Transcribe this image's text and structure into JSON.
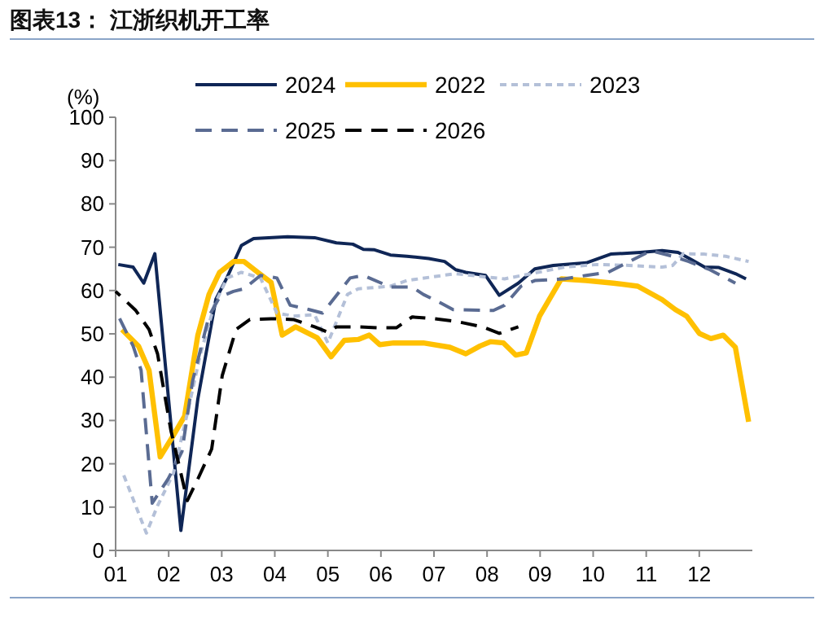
{
  "chart_data": {
    "type": "line",
    "title": "图表13：  江浙织机开工率",
    "ylabel": "(%)",
    "xlim": [
      1,
      13
    ],
    "ylim": [
      0,
      100
    ],
    "xticks": [
      {
        "value": 1,
        "label": "01"
      },
      {
        "value": 2,
        "label": "02"
      },
      {
        "value": 3,
        "label": "03"
      },
      {
        "value": 4,
        "label": "04"
      },
      {
        "value": 5,
        "label": "05"
      },
      {
        "value": 6,
        "label": "06"
      },
      {
        "value": 7,
        "label": "07"
      },
      {
        "value": 8,
        "label": "08"
      },
      {
        "value": 9,
        "label": "09"
      },
      {
        "value": 10,
        "label": "10"
      },
      {
        "value": 11,
        "label": "11"
      },
      {
        "value": 12,
        "label": "12"
      }
    ],
    "yticks": [
      0,
      10,
      20,
      30,
      40,
      50,
      60,
      70,
      80,
      90,
      100
    ],
    "grid": false,
    "legend": "top",
    "marker": "none",
    "series": [
      {
        "name": "2024",
        "color": "#0f2656",
        "line_style": "solid",
        "x": [
          1.05,
          1.33,
          1.53,
          1.74,
          2.23,
          2.55,
          2.89,
          3.1,
          3.37,
          3.6,
          4.24,
          4.75,
          5.16,
          5.47,
          5.67,
          5.88,
          6.18,
          6.49,
          6.9,
          7.2,
          7.41,
          7.6,
          7.97,
          8.23,
          8.59,
          8.9,
          9.25,
          9.87,
          10.33,
          10.89,
          11.3,
          11.6,
          11.8,
          12.1,
          12.37,
          12.68,
          12.88
        ],
        "values": [
          66,
          65.4,
          61.7,
          68.5,
          4.6,
          35,
          58,
          63,
          70.4,
          72,
          72.4,
          72.2,
          71,
          70.7,
          69.5,
          69.4,
          68.2,
          67.9,
          67.4,
          66.7,
          64.8,
          64.2,
          63.5,
          58.9,
          61.7,
          65,
          65.8,
          66.4,
          68.4,
          68.8,
          69.2,
          68.8,
          67.5,
          65.4,
          65.3,
          63.9,
          62.7
        ]
      },
      {
        "name": "2022",
        "color": "#ffc000",
        "line_style": "solid",
        "x": [
          1.12,
          1.43,
          1.63,
          1.84,
          2.09,
          2.3,
          2.55,
          2.76,
          2.96,
          3.22,
          3.42,
          3.68,
          3.93,
          4.14,
          4.39,
          4.8,
          5.06,
          5.31,
          5.57,
          5.78,
          5.98,
          6.24,
          6.8,
          7.3,
          7.6,
          7.87,
          8.07,
          8.31,
          8.54,
          8.74,
          8.99,
          9.4,
          9.87,
          10.38,
          10.84,
          11.3,
          11.55,
          11.76,
          12.0,
          12.22,
          12.45,
          12.68,
          12.93
        ],
        "values": [
          51,
          47.2,
          41.6,
          21.6,
          26.6,
          31,
          49.7,
          59.1,
          64.2,
          66.7,
          66.7,
          64.2,
          61.9,
          49.7,
          51.6,
          49.1,
          44.7,
          48.5,
          48.7,
          49.7,
          47.5,
          47.9,
          47.9,
          46.9,
          45.4,
          47.2,
          48.2,
          47.9,
          45.1,
          45.6,
          54.1,
          62.7,
          62.3,
          61.7,
          61,
          57.9,
          55.6,
          54.1,
          50.1,
          48.9,
          49.7,
          46.9,
          29.7
        ]
      },
      {
        "name": "2023",
        "color": "#b4c0d8",
        "line_style": "dotted",
        "x": [
          1.12,
          1.58,
          1.79,
          2.09,
          2.35,
          2.6,
          2.86,
          3.1,
          3.37,
          3.73,
          4.04,
          4.35,
          4.75,
          5.0,
          5.37,
          5.57,
          6.18,
          6.49,
          7.0,
          7.41,
          7.92,
          8.33,
          8.84,
          9.46,
          10.07,
          10.68,
          11.3,
          11.5,
          11.7,
          12.1,
          12.5,
          12.93
        ],
        "values": [
          18.4,
          4,
          10.3,
          17.8,
          31.6,
          45.4,
          56.6,
          62.9,
          64.2,
          62.9,
          54.8,
          54.1,
          54.4,
          47.9,
          59.1,
          60.4,
          61,
          62.3,
          63.2,
          63.9,
          63.2,
          62.7,
          63.9,
          65.4,
          66,
          65.8,
          65.4,
          65.8,
          68.5,
          68.4,
          67.9,
          66.7
        ]
      },
      {
        "name": "2025",
        "color": "#5a6b92",
        "line_style": "dashed",
        "x": [
          1,
          1.33,
          1.48,
          1.69,
          1.99,
          2.25,
          2.45,
          2.76,
          2.96,
          3.22,
          3.42,
          3.73,
          4.04,
          4.29,
          4.65,
          4.9,
          5.1,
          5.42,
          5.67,
          6.18,
          6.59,
          6.8,
          7.1,
          7.36,
          8.12,
          8.33,
          8.64,
          8.9,
          9.46,
          9.87,
          10.28,
          10.68,
          11.09,
          11.5,
          11.8,
          12.2,
          12.68
        ],
        "values": [
          55.4,
          47.2,
          41.6,
          10.9,
          16.5,
          22.8,
          39.1,
          54.1,
          58.5,
          59.8,
          60.4,
          63.5,
          62.9,
          56.6,
          55.6,
          54.8,
          57.9,
          62.9,
          63.5,
          60.8,
          60.8,
          59.1,
          57.3,
          55.6,
          55.4,
          56.6,
          61,
          62.3,
          62.7,
          63.5,
          64.2,
          66.7,
          69.2,
          67.9,
          66.7,
          64.8,
          61.7
        ]
      },
      {
        "name": "2026",
        "color": "#000000",
        "line_style": "dashed",
        "x": [
          1,
          1.38,
          1.63,
          1.79,
          2.04,
          2.35,
          2.55,
          2.81,
          3.01,
          3.27,
          3.53,
          3.93,
          4.35,
          4.75,
          5.0,
          5.16,
          5.57,
          5.98,
          6.29,
          6.59,
          7.0,
          7.41,
          7.92,
          8.23,
          8.59
        ],
        "values": [
          59.8,
          55.4,
          51,
          45.4,
          27.8,
          11.5,
          16.5,
          23.4,
          40.4,
          51,
          53.3,
          53.5,
          53.3,
          51.6,
          50.4,
          51.6,
          51.6,
          51.4,
          51.4,
          53.9,
          53.5,
          52.9,
          51.6,
          50.1,
          51.6
        ]
      }
    ]
  }
}
